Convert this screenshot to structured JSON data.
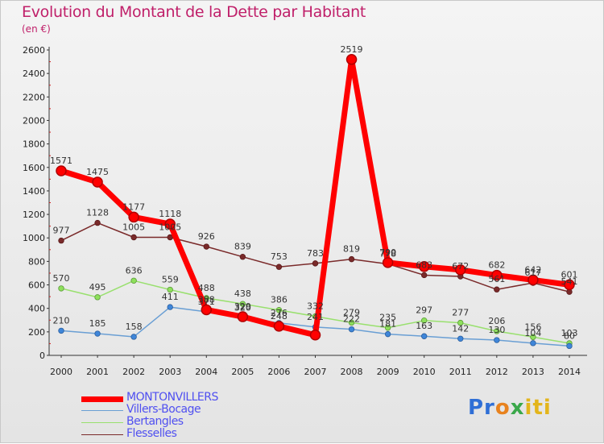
{
  "title": "Evolution du Montant de la Dette par Habitant",
  "subtitle": "(en €)",
  "logo": [
    "Pr",
    "o",
    "x",
    "iti"
  ],
  "chart_data": {
    "type": "line",
    "title": "Evolution du Montant de la Dette par Habitant",
    "subtitle": "(en €)",
    "xlabel": "",
    "ylabel": "",
    "x": [
      "2000",
      "2001",
      "2002",
      "2003",
      "2004",
      "2005",
      "2006",
      "2007",
      "2008",
      "2009",
      "2010",
      "2011",
      "2012",
      "2013",
      "2014"
    ],
    "ylim": [
      0,
      2600
    ],
    "yticks": [
      0,
      200,
      400,
      600,
      800,
      1000,
      1200,
      1400,
      1600,
      1800,
      2000,
      2200,
      2400,
      2600
    ],
    "grid": false,
    "legend_position": "bottom-left",
    "series": [
      {
        "name": "MONTONVILLERS",
        "color": "#ff0000",
        "values": [
          1571,
          1475,
          1177,
          1118,
          388,
          329,
          248,
          173,
          2519,
          790,
          756,
          728,
          682,
          642,
          601
        ],
        "labels": [
          "1571",
          "1475",
          "1177",
          "1118",
          "388",
          "329",
          "248",
          "",
          "2519",
          "790",
          "",
          "",
          "682",
          "642",
          "601"
        ]
      },
      {
        "name": "Villers-Bocage",
        "color": "#6a9fd4",
        "values": [
          210,
          185,
          158,
          411,
          371,
          320,
          276,
          241,
          222,
          181,
          163,
          142,
          130,
          104,
          80
        ],
        "labels": [
          "210",
          "185",
          "158",
          "411",
          "371",
          "320",
          "276",
          "241",
          "222",
          "181",
          "163",
          "142",
          "130",
          "104",
          "80"
        ]
      },
      {
        "name": "Bertangles",
        "color": "#99e06e",
        "values": [
          570,
          495,
          636,
          559,
          488,
          438,
          386,
          332,
          279,
          235,
          297,
          277,
          206,
          156,
          103
        ],
        "labels": [
          "570",
          "495",
          "636",
          "559",
          "488",
          "438",
          "386",
          "332",
          "279",
          "235",
          "297",
          "277",
          "206",
          "156",
          "103"
        ]
      },
      {
        "name": "Flesselles",
        "color": "#7a2a2a",
        "values": [
          977,
          1128,
          1005,
          1005,
          926,
          839,
          753,
          783,
          819,
          778,
          683,
          672,
          561,
          617,
          541
        ],
        "labels": [
          "977",
          "1128",
          "1005",
          "1005",
          "926",
          "839",
          "753",
          "783",
          "819",
          "778",
          "683",
          "672",
          "561",
          "617",
          "541"
        ]
      }
    ]
  }
}
